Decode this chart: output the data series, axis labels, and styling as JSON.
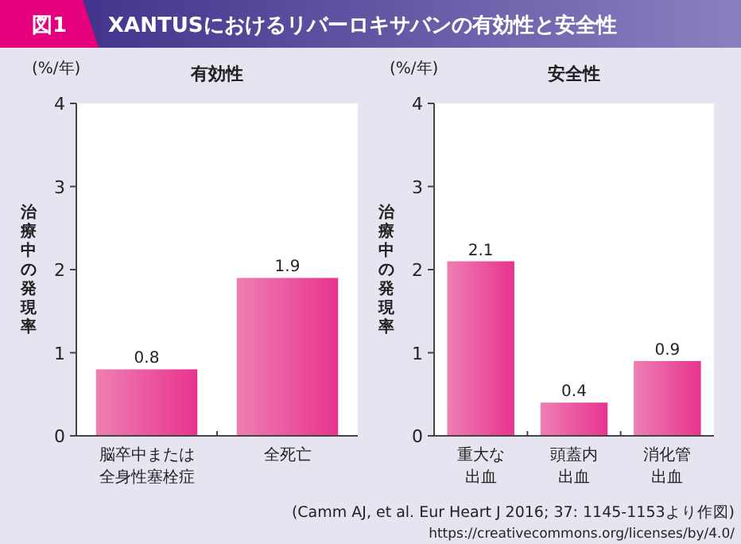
{
  "chart_data": [
    {
      "type": "bar",
      "title": "有効性",
      "ylabel": "治療中の発現率",
      "categories": [
        "脳卒中または全身性塞栓症",
        "全死亡"
      ],
      "values": [
        0.8,
        1.9
      ],
      "color": "#e8338e",
      "ylim": [
        0,
        4
      ],
      "yticks": [
        0,
        1,
        2,
        3,
        4
      ],
      "data_labels": true,
      "grid": false,
      "annotations": [
        "図1",
        "XANTUSにおけるリバーロキサバンの有効性と安全性",
        "(%/年)"
      ]
    },
    {
      "type": "bar",
      "title": "安全性",
      "ylabel": "治療中の発現率",
      "categories": [
        "重大な出血",
        "頭蓋内出血",
        "消化管出血"
      ],
      "values": [
        2.1,
        0.4,
        0.9
      ],
      "color": "#e8338e",
      "ylim": [
        0,
        4
      ],
      "yticks": [
        0,
        1,
        2,
        3,
        4
      ],
      "data_labels": true,
      "grid": false,
      "annotations": [
        "(%/年)",
        "(Camm AJ, et al. Eur Heart J 2016; 37: 1145-1153より作図)",
        "https://creativecommons.org/licenses/by/4.0/"
      ]
    }
  ]
}
